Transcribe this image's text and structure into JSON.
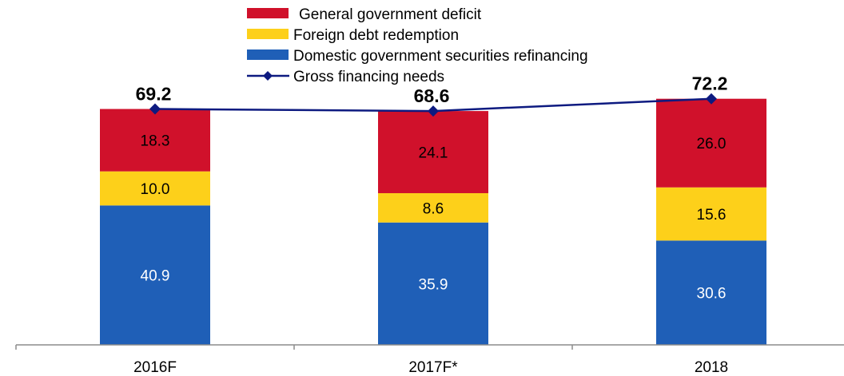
{
  "chart_data": {
    "type": "bar",
    "stacked": true,
    "categories": [
      "2016F",
      "2017F*",
      "2018"
    ],
    "series": [
      {
        "name": "Domestic government securities refinancing",
        "values": [
          40.9,
          35.9,
          30.6
        ],
        "color": "#1f5fb7",
        "label_color": "#ffffff"
      },
      {
        "name": "Foreign debt redemption",
        "values": [
          10.0,
          8.6,
          15.6
        ],
        "color": "#fdd01a",
        "label_color": "#000000"
      },
      {
        "name": "General government deficit",
        "values": [
          18.3,
          24.1,
          26.0
        ],
        "color": "#d0112b",
        "label_color": "#000000"
      }
    ],
    "line": {
      "name": "Gross financing needs",
      "values": [
        69.2,
        68.6,
        72.2
      ],
      "color": "#0d1a80"
    },
    "value_labels": {
      "segments": [
        [
          "40.9",
          "10.0",
          "18.3"
        ],
        [
          "35.9",
          "8.6",
          "24.1"
        ],
        [
          "30.6",
          "15.6",
          "26.0"
        ]
      ],
      "totals": [
        "69.2",
        "68.6",
        "72.2"
      ]
    },
    "legend_order": [
      "General government deficit",
      "Foreign debt redemption",
      "Domestic government securities refinancing",
      "Gross financing needs"
    ],
    "legend_position": "top-center",
    "ylim": [
      0,
      72.2
    ],
    "grid": false,
    "title": "",
    "xlabel": "",
    "ylabel": ""
  }
}
